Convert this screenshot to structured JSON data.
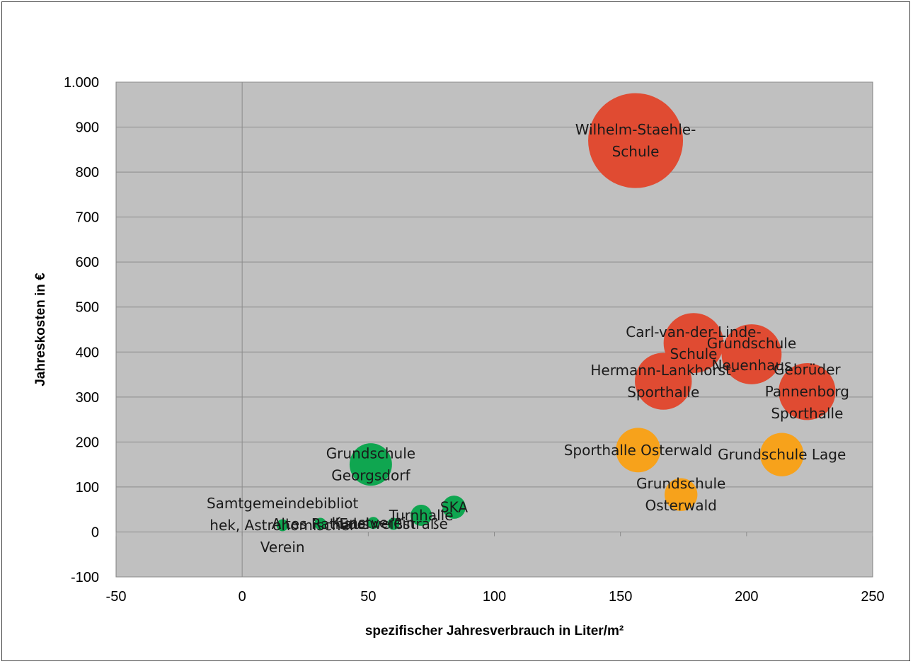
{
  "chart_data": {
    "type": "bubble",
    "title": "",
    "xlabel": "spezifischer Jahresverbrauch in Liter/m²",
    "ylabel": "Jahreskosten in €",
    "xlim": [
      -50,
      250
    ],
    "ylim": [
      -100,
      1000
    ],
    "x_ticks": [
      -50,
      0,
      50,
      100,
      150,
      200,
      250
    ],
    "x_tick_labels": [
      "-50",
      "0",
      "50",
      "100",
      "150",
      "200",
      "250"
    ],
    "y_ticks": [
      -100,
      0,
      100,
      200,
      300,
      400,
      500,
      600,
      700,
      800,
      900,
      1000
    ],
    "y_tick_labels": [
      "-100",
      "0",
      "100",
      "200",
      "300",
      "400",
      "500",
      "600",
      "700",
      "800",
      "900",
      "1.000"
    ],
    "grid": "horizontal major gridlines",
    "legend": "none",
    "colors": {
      "plot_bg": "#c0c0c0",
      "red": "#e04b32",
      "orange": "#f7a21b",
      "green": "#0fa650",
      "grid": "#8c8c8c"
    },
    "points": [
      {
        "label": [
          "Wilhelm-Staehle-",
          "Schule"
        ],
        "x": 156,
        "y": 870,
        "size": 5.0,
        "color": "red"
      },
      {
        "label": [
          "Carl-van-der-Linde-",
          "Schule"
        ],
        "x": 179,
        "y": 420,
        "size": 2.0,
        "color": "red"
      },
      {
        "label": [
          "Grundschule",
          "Neuenhaus"
        ],
        "x": 202,
        "y": 395,
        "size": 2.0,
        "color": "red"
      },
      {
        "label": [
          "Hermann-Lankhorst-",
          "Sporthalle"
        ],
        "x": 167,
        "y": 335,
        "size": 1.8,
        "color": "red"
      },
      {
        "label": [
          "Gebrüder",
          "Pannenborg",
          "Sporthalle"
        ],
        "x": 224,
        "y": 312,
        "size": 1.8,
        "color": "red"
      },
      {
        "label": [
          "Sporthalle Osterwald"
        ],
        "x": 157,
        "y": 182,
        "size": 1.1,
        "color": "orange"
      },
      {
        "label": [
          "Grundschule Lage"
        ],
        "x": 214,
        "y": 172,
        "size": 1.05,
        "color": "orange"
      },
      {
        "label": [
          "Grundschule",
          "Osterwald"
        ],
        "x": 174,
        "y": 83,
        "size": 0.6,
        "color": "orange"
      },
      {
        "label": [
          "Grundschule",
          "Georgsdorf"
        ],
        "x": 51,
        "y": 150,
        "size": 1.0,
        "color": "green"
      },
      {
        "label": [
          "Turnhalle"
        ],
        "x": 71,
        "y": 37,
        "size": 0.25,
        "color": "green"
      },
      {
        "label": [
          "SKA"
        ],
        "x": 84,
        "y": 55,
        "size": 0.3,
        "color": "green"
      },
      {
        "label": [
          "Samtgemeindebibliot",
          "hek, Astronomischer",
          "Verein"
        ],
        "x": 16,
        "y": 15,
        "size": 0.08,
        "color": "green"
      },
      {
        "label": [
          "Altes Rathaus"
        ],
        "x": 31,
        "y": 18,
        "size": 0.08,
        "color": "green"
      },
      {
        "label": [
          "Kunstverein"
        ],
        "x": 52,
        "y": 20,
        "size": 0.08,
        "color": "green"
      },
      {
        "label": [
          "Edelweißstraße"
        ],
        "x": 60,
        "y": 18,
        "size": 0.08,
        "color": "green"
      }
    ]
  }
}
